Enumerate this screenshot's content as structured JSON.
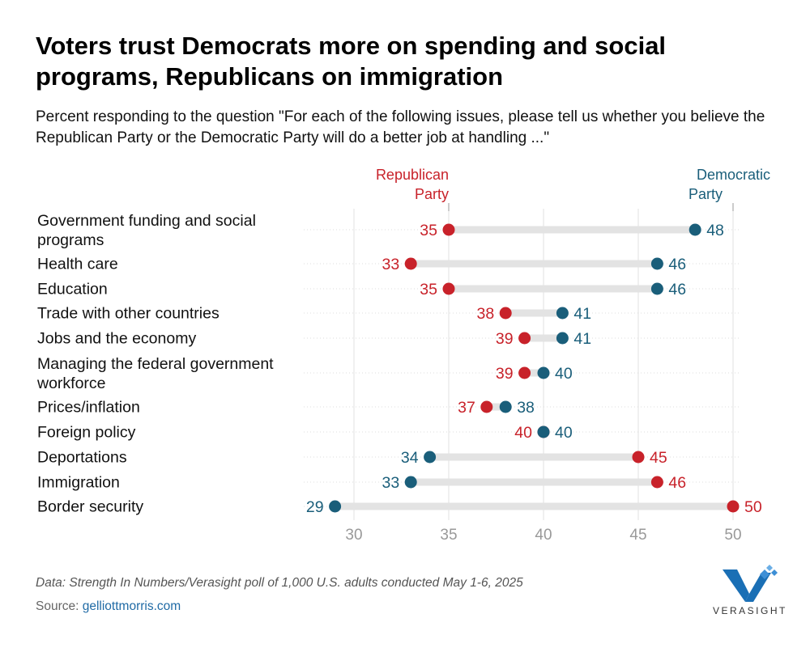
{
  "title": "Voters trust Democrats more on spending and social programs, Republicans on immigration",
  "subtitle": "Percent responding to the question \"For each of the following issues, please tell us whether you believe the Republican Party or the Democratic Party will do a better job at handling ...\"",
  "footnote": "Data: Strength In Numbers/Verasight poll of 1,000 U.S. adults conducted May 1-6, 2025",
  "source_label": "Source: ",
  "source_link": "gelliottmorris.com",
  "logo_text": "VERASIGHT",
  "colors": {
    "republican": "#c8222a",
    "democratic": "#1a5e7a",
    "connector": "#e3e3e3",
    "grid": "#e0e0e0",
    "tick": "#999999"
  },
  "chart_data": {
    "type": "dumbbell",
    "xlim": [
      29,
      50
    ],
    "x_ticks": [
      30,
      35,
      40,
      45,
      50
    ],
    "grid": true,
    "series": [
      {
        "name": "Republican Party",
        "key": "rep",
        "label_lines": [
          "Republican",
          "Party"
        ],
        "label_anchor": 35
      },
      {
        "name": "Democratic Party",
        "key": "dem",
        "label_lines": [
          "Democratic",
          "Party"
        ],
        "label_anchor": 50
      }
    ],
    "rows": [
      {
        "label": [
          "Government funding and social",
          "programs"
        ],
        "rep": 35,
        "dem": 48
      },
      {
        "label": [
          "Health care"
        ],
        "rep": 33,
        "dem": 46
      },
      {
        "label": [
          "Education"
        ],
        "rep": 35,
        "dem": 46
      },
      {
        "label": [
          "Trade with other countries"
        ],
        "rep": 38,
        "dem": 41
      },
      {
        "label": [
          "Jobs and the economy"
        ],
        "rep": 39,
        "dem": 41
      },
      {
        "label": [
          "Managing the federal government",
          "workforce"
        ],
        "rep": 39,
        "dem": 40
      },
      {
        "label": [
          "Prices/inflation"
        ],
        "rep": 37,
        "dem": 38
      },
      {
        "label": [
          "Foreign policy"
        ],
        "rep": 40,
        "dem": 40
      },
      {
        "label": [
          "Deportations"
        ],
        "rep": 45,
        "dem": 34
      },
      {
        "label": [
          "Immigration"
        ],
        "rep": 46,
        "dem": 33
      },
      {
        "label": [
          "Border security"
        ],
        "rep": 50,
        "dem": 29
      }
    ]
  }
}
